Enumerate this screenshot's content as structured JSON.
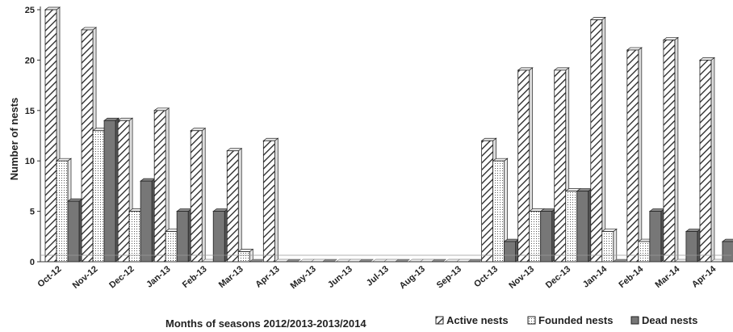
{
  "chart_data": {
    "type": "bar",
    "title": "",
    "xlabel": "Months of seasons 2012/2013-2013/2014",
    "ylabel": "Number of nests",
    "ylim": [
      0,
      25
    ],
    "yticks": [
      0,
      5,
      10,
      15,
      20,
      25
    ],
    "grid": false,
    "legend_position": "bottom-right",
    "categories": [
      "Oct-12",
      "Nov-12",
      "Dec-12",
      "Jan-13",
      "Feb-13",
      "Mar-13",
      "Apr-13",
      "May-13",
      "Jun-13",
      "Jul-13",
      "Aug-13",
      "Sep-13",
      "Oct-13",
      "Nov-13",
      "Dec-13",
      "Jan-14",
      "Feb-14",
      "Mar-14",
      "Apr-14"
    ],
    "series": [
      {
        "name": "Active nests",
        "pattern": "hatch",
        "values": [
          25,
          23,
          14,
          15,
          13,
          11,
          12,
          0,
          0,
          0,
          0,
          0,
          12,
          19,
          19,
          24,
          21,
          22,
          20
        ]
      },
      {
        "name": "Founded nests",
        "pattern": "dots",
        "values": [
          10,
          13,
          5,
          3,
          0,
          1,
          0,
          0,
          0,
          0,
          0,
          0,
          10,
          5,
          7,
          3,
          2,
          0,
          0
        ]
      },
      {
        "name": "Dead nests",
        "pattern": "solid",
        "values": [
          6,
          14,
          8,
          5,
          5,
          0,
          0,
          0,
          0,
          0,
          0,
          0,
          2,
          5,
          7,
          0,
          5,
          3,
          2
        ]
      }
    ],
    "colors": {
      "dead": "#777777",
      "founded": "#ffffff",
      "active": "#ffffff",
      "outline": "#222222"
    }
  }
}
